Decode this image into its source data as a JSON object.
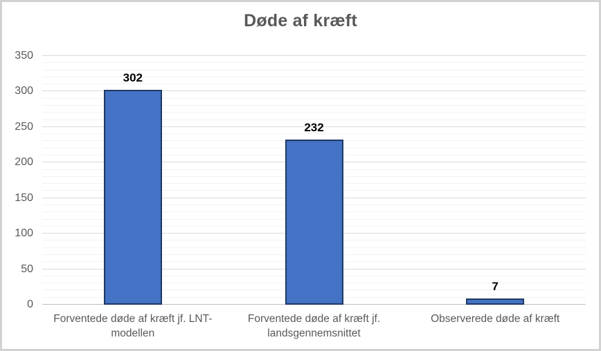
{
  "chart_data": {
    "type": "bar",
    "title": "Døde af kræft",
    "categories": [
      "Forventede døde af kræft jf. LNT-modellen",
      "Forventede døde af kræft jf. landsgennemsnittet",
      "Observerede døde af kræft"
    ],
    "values": [
      302,
      232,
      7
    ],
    "data_labels": [
      "302",
      "232",
      "7"
    ],
    "xlabel": "",
    "ylabel": "",
    "ylim": [
      0,
      350
    ],
    "y_major_step": 50,
    "y_minor_step": 10,
    "y_tick_labels": [
      "0",
      "50",
      "100",
      "150",
      "200",
      "250",
      "300",
      "350"
    ],
    "grid": "horizontal major and minor gridlines",
    "legend": "none",
    "colors": {
      "bar_fill": "#4472C4",
      "bar_border": "#1F3864",
      "title_text": "#595959",
      "axis_text": "#595959",
      "data_label_text": "#000000",
      "major_gridline": "#D9D9D9",
      "minor_gridline": "#F2F2F2",
      "axis_line": "#BFBFBF",
      "chart_border": "#D2D2D2",
      "background": "#FFFFFF"
    }
  }
}
